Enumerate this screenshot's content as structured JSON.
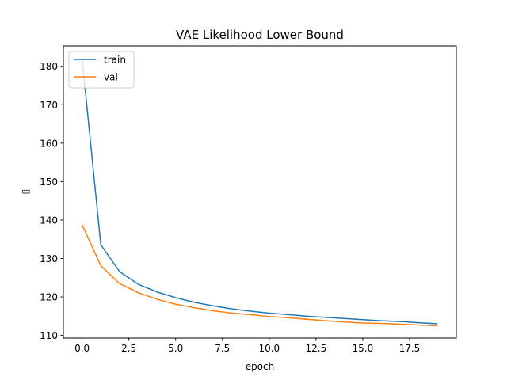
{
  "chart_data": {
    "type": "line",
    "title": "VAE Likelihood Lower Bound",
    "xlabel": "epoch",
    "ylabel": "▯",
    "xlim": [
      -1,
      20
    ],
    "ylim": [
      109.3,
      185.3
    ],
    "xticks": [
      0.0,
      2.5,
      5.0,
      7.5,
      10.0,
      12.5,
      15.0,
      17.5
    ],
    "xtick_labels": [
      "0.0",
      "2.5",
      "5.0",
      "7.5",
      "10.0",
      "12.5",
      "15.0",
      "17.5"
    ],
    "yticks": [
      110,
      120,
      130,
      140,
      150,
      160,
      170,
      180
    ],
    "ytick_labels": [
      "110",
      "120",
      "130",
      "140",
      "150",
      "160",
      "170",
      "180"
    ],
    "grid": false,
    "legend_position": "top-left",
    "x": [
      0,
      1,
      2,
      3,
      4,
      5,
      6,
      7,
      8,
      9,
      10,
      11,
      12,
      13,
      14,
      15,
      16,
      17,
      18,
      19
    ],
    "series": [
      {
        "name": "train",
        "color": "#1f77b4",
        "values": [
          182.0,
          133.6,
          126.6,
          123.3,
          121.3,
          119.8,
          118.6,
          117.7,
          116.9,
          116.3,
          115.8,
          115.4,
          115.0,
          114.7,
          114.4,
          114.1,
          113.8,
          113.6,
          113.3,
          113.0
        ]
      },
      {
        "name": "val",
        "color": "#ff7f0e",
        "values": [
          138.8,
          128.1,
          123.5,
          121.1,
          119.4,
          118.1,
          117.2,
          116.4,
          115.8,
          115.4,
          114.9,
          114.6,
          114.2,
          113.8,
          113.5,
          113.2,
          113.1,
          112.9,
          112.7,
          112.5
        ]
      }
    ]
  }
}
